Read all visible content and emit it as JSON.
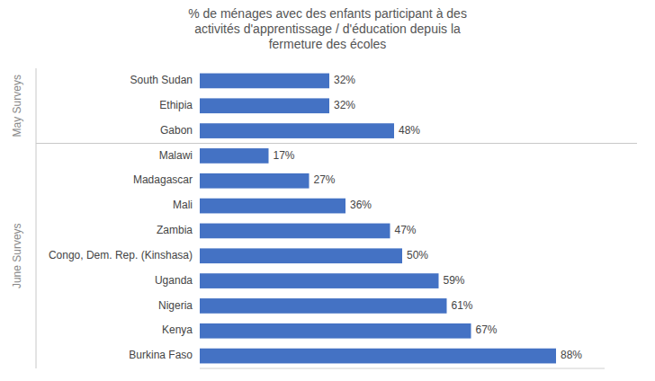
{
  "chart_data": {
    "type": "bar",
    "orientation": "horizontal",
    "title": "% de ménages avec des enfants participant à des\nactivités d'apprentissage / d'éducation depuis la\nfermeture des écoles",
    "categories": [
      "South Sudan",
      "Ethipia",
      "Gabon",
      "Malawi",
      "Madagascar",
      "Mali",
      "Zambia",
      "Congo, Dem. Rep. (Kinshasa)",
      "Uganda",
      "Nigeria",
      "Kenya",
      "Burkina Faso"
    ],
    "values": [
      32,
      32,
      48,
      17,
      27,
      36,
      47,
      50,
      59,
      61,
      67,
      88
    ],
    "value_labels": [
      "32%",
      "32%",
      "48%",
      "17%",
      "27%",
      "36%",
      "47%",
      "50%",
      "59%",
      "61%",
      "67%",
      "88%"
    ],
    "color": "#4472C4",
    "xlim": [
      0,
      100
    ],
    "data_labels": true,
    "tick_labels": "y",
    "grid": false,
    "annotations": [
      {
        "text": "May Surveys",
        "indices": [
          0,
          1,
          2
        ]
      },
      {
        "text": "June Surveys",
        "indices": [
          3,
          4,
          5,
          6,
          7,
          8,
          9,
          10,
          11
        ]
      }
    ]
  }
}
